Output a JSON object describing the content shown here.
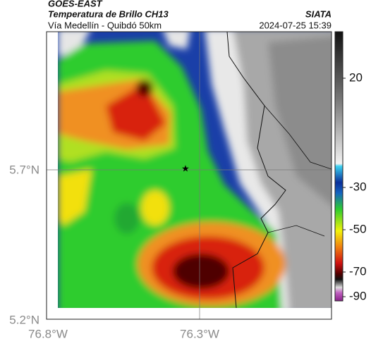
{
  "header": {
    "title": "GOES-EAST",
    "subtitle": "Temperatura de Brillo CH13",
    "source": "SIATA",
    "region": "Vía Medellín - Quibdó 50km",
    "timestamp": "2024-07-25 15:39"
  },
  "axes": {
    "y_ticks": [
      "5.7°N",
      "5.2°N"
    ],
    "x_ticks": [
      "76.8°W",
      "76.3°W"
    ]
  },
  "colorbar": {
    "ticks": [
      20,
      -30,
      -50,
      -70,
      -90
    ]
  }
}
